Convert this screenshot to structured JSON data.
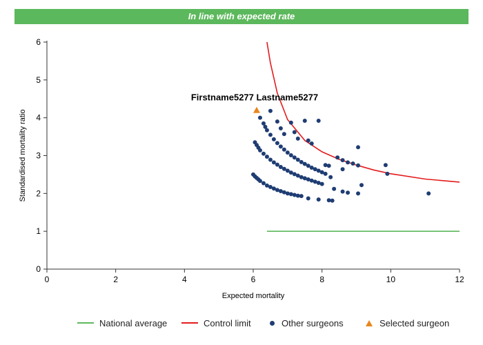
{
  "banner": {
    "title": "In line with expected rate",
    "color": "#5cb85c"
  },
  "chart_data": {
    "type": "scatter",
    "title": "",
    "xlabel": "Expected mortality",
    "ylabel": "Standardised mortality ratio",
    "xlim": [
      0,
      12
    ],
    "ylim": [
      0,
      6
    ],
    "xticks": [
      0,
      2,
      4,
      6,
      8,
      10,
      12
    ],
    "yticks": [
      0,
      1,
      2,
      3,
      4,
      5,
      6
    ],
    "grid": false,
    "legend_position": "bottom",
    "annotation": {
      "text": "Firstname5277 Lastname5277",
      "x": 6.1,
      "y": 4.2
    },
    "series": [
      {
        "name": "National average",
        "type": "line",
        "color": "#5cb85c",
        "x": [
          6.4,
          12
        ],
        "y": [
          1,
          1
        ]
      },
      {
        "name": "Control limit",
        "type": "line",
        "color": "#e31a1c",
        "x": [
          6.4,
          6.5,
          6.7,
          7.0,
          7.5,
          8.0,
          8.5,
          9.0,
          9.5,
          10.0,
          11.0,
          12.0
        ],
        "y": [
          6.0,
          5.45,
          4.65,
          3.95,
          3.4,
          3.1,
          2.9,
          2.75,
          2.62,
          2.52,
          2.38,
          2.3
        ]
      },
      {
        "name": "Other surgeons",
        "type": "scatter",
        "color": "#1f3d73",
        "points": [
          [
            6.0,
            2.5
          ],
          [
            6.05,
            2.45
          ],
          [
            6.1,
            2.41
          ],
          [
            6.15,
            2.37
          ],
          [
            6.2,
            2.33
          ],
          [
            6.3,
            2.27
          ],
          [
            6.4,
            2.21
          ],
          [
            6.5,
            2.17
          ],
          [
            6.6,
            2.13
          ],
          [
            6.7,
            2.09
          ],
          [
            6.8,
            2.06
          ],
          [
            6.9,
            2.03
          ],
          [
            7.0,
            2.0
          ],
          [
            7.1,
            1.98
          ],
          [
            7.2,
            1.96
          ],
          [
            7.3,
            1.94
          ],
          [
            7.4,
            1.93
          ],
          [
            7.6,
            1.87
          ],
          [
            7.9,
            1.84
          ],
          [
            8.2,
            1.82
          ],
          [
            8.3,
            1.81
          ],
          [
            6.05,
            3.35
          ],
          [
            6.1,
            3.28
          ],
          [
            6.15,
            3.21
          ],
          [
            6.2,
            3.14
          ],
          [
            6.3,
            3.05
          ],
          [
            6.4,
            2.97
          ],
          [
            6.5,
            2.89
          ],
          [
            6.6,
            2.82
          ],
          [
            6.7,
            2.76
          ],
          [
            6.8,
            2.7
          ],
          [
            6.9,
            2.65
          ],
          [
            7.0,
            2.6
          ],
          [
            7.1,
            2.55
          ],
          [
            7.2,
            2.51
          ],
          [
            7.3,
            2.47
          ],
          [
            7.4,
            2.43
          ],
          [
            7.5,
            2.4
          ],
          [
            7.6,
            2.37
          ],
          [
            7.7,
            2.34
          ],
          [
            7.8,
            2.31
          ],
          [
            7.9,
            2.28
          ],
          [
            8.0,
            2.25
          ],
          [
            8.35,
            2.12
          ],
          [
            8.6,
            2.05
          ],
          [
            8.75,
            2.02
          ],
          [
            9.05,
            2.0
          ],
          [
            9.15,
            2.22
          ],
          [
            6.2,
            4.0
          ],
          [
            6.3,
            3.85
          ],
          [
            6.35,
            3.76
          ],
          [
            6.4,
            3.67
          ],
          [
            6.5,
            3.55
          ],
          [
            6.6,
            3.43
          ],
          [
            6.7,
            3.33
          ],
          [
            6.8,
            3.24
          ],
          [
            6.9,
            3.16
          ],
          [
            7.0,
            3.08
          ],
          [
            7.1,
            3.01
          ],
          [
            7.2,
            2.95
          ],
          [
            7.3,
            2.89
          ],
          [
            7.4,
            2.83
          ],
          [
            7.5,
            2.78
          ],
          [
            7.6,
            2.73
          ],
          [
            7.7,
            2.68
          ],
          [
            7.8,
            2.64
          ],
          [
            7.9,
            2.6
          ],
          [
            8.0,
            2.56
          ],
          [
            8.1,
            2.52
          ],
          [
            8.25,
            2.43
          ],
          [
            8.6,
            2.64
          ],
          [
            8.75,
            2.82
          ],
          [
            8.9,
            2.79
          ],
          [
            9.05,
            2.74
          ],
          [
            9.85,
            2.75
          ],
          [
            9.9,
            2.52
          ],
          [
            6.5,
            4.18
          ],
          [
            6.7,
            3.9
          ],
          [
            6.8,
            3.72
          ],
          [
            6.9,
            3.57
          ],
          [
            7.1,
            3.87
          ],
          [
            7.2,
            3.62
          ],
          [
            7.3,
            3.45
          ],
          [
            7.5,
            3.92
          ],
          [
            7.6,
            3.4
          ],
          [
            7.7,
            3.32
          ],
          [
            7.9,
            3.92
          ],
          [
            8.1,
            2.75
          ],
          [
            8.2,
            2.73
          ],
          [
            8.45,
            2.95
          ],
          [
            8.6,
            2.88
          ],
          [
            9.05,
            3.22
          ],
          [
            11.1,
            2.0
          ]
        ]
      },
      {
        "name": "Selected surgeon",
        "type": "scatter",
        "color": "#e8871e",
        "points": [
          [
            6.1,
            4.2
          ]
        ]
      }
    ]
  }
}
